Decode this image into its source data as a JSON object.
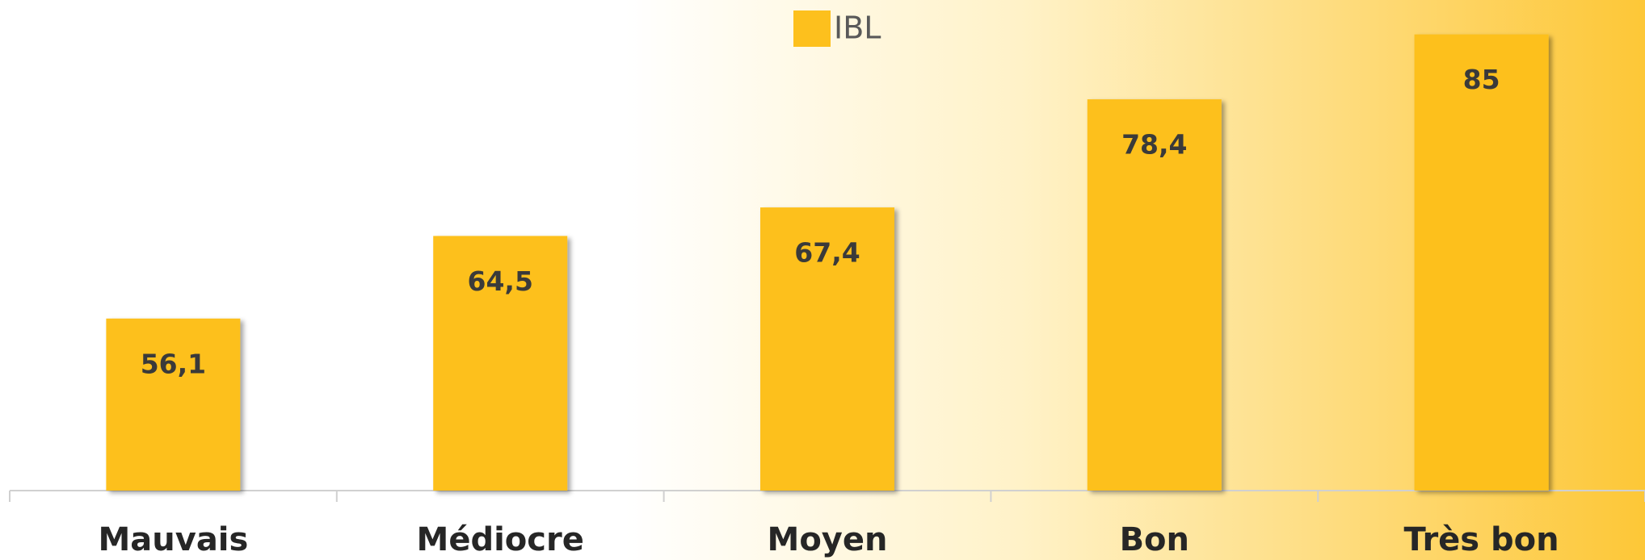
{
  "chart_data": {
    "type": "bar",
    "categories": [
      "Mauvais",
      "Médiocre",
      "Moyen",
      "Bon",
      "Très bon"
    ],
    "series": [
      {
        "name": "IBL",
        "color": "#fdc01d",
        "values": [
          56.1,
          64.5,
          67.4,
          78.4,
          85
        ],
        "value_labels": [
          "56,1",
          "64,5",
          "67,4",
          "78,4",
          "85"
        ]
      }
    ],
    "ylim": [
      38.6,
      88.5
    ],
    "legend": "top"
  }
}
